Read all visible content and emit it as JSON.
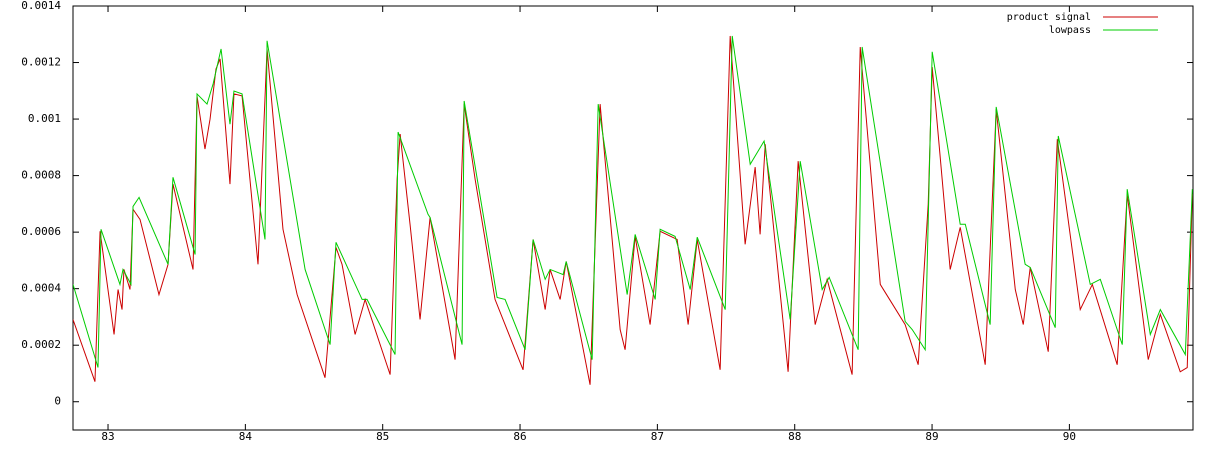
{
  "chart_data": {
    "type": "line",
    "xlim": [
      82.745,
      90.9
    ],
    "ylim": [
      -0.0001,
      0.0014
    ],
    "xticks": [
      83,
      84,
      85,
      86,
      87,
      88,
      89,
      90
    ],
    "yticks": [
      0,
      0.0002,
      0.0004,
      0.0006,
      0.0008,
      0.001,
      0.0012,
      0.0014
    ],
    "grid": false,
    "legend": "top-right",
    "series": [
      {
        "name": "product signal",
        "color": "#cc0000",
        "x": [
          82.745,
          82.905,
          82.942,
          83.044,
          83.073,
          83.102,
          83.116,
          83.16,
          83.182,
          83.233,
          83.371,
          83.437,
          83.473,
          83.619,
          83.648,
          83.706,
          83.743,
          83.786,
          83.816,
          83.888,
          83.917,
          83.976,
          84.092,
          84.158,
          84.274,
          84.377,
          84.58,
          84.66,
          84.704,
          84.799,
          84.872,
          85.054,
          85.105,
          85.127,
          85.199,
          85.272,
          85.345,
          85.527,
          85.593,
          85.673,
          85.818,
          86.022,
          86.095,
          86.183,
          86.219,
          86.292,
          86.336,
          86.51,
          86.583,
          86.729,
          86.765,
          86.838,
          86.947,
          87.02,
          87.144,
          87.224,
          87.29,
          87.457,
          87.53,
          87.639,
          87.712,
          87.748,
          87.785,
          87.952,
          88.025,
          88.149,
          88.236,
          88.418,
          88.477,
          88.623,
          88.804,
          88.899,
          88.972,
          89.001,
          89.132,
          89.205,
          89.387,
          89.467,
          89.606,
          89.664,
          89.715,
          89.846,
          89.912,
          90.079,
          90.167,
          90.348,
          90.421,
          90.574,
          90.662,
          90.807,
          90.858,
          90.895
        ],
        "values": [
          0.000291,
          7.1e-05,
          0.000603,
          0.000238,
          0.000397,
          0.000326,
          0.000468,
          0.000397,
          0.000681,
          0.000645,
          0.000379,
          0.000486,
          0.00077,
          0.000468,
          0.001082,
          0.000894,
          0.001,
          0.001177,
          0.001213,
          0.00077,
          0.001089,
          0.001082,
          0.000486,
          0.001248,
          0.00061,
          0.000379,
          8.5e-05,
          0.000546,
          0.000486,
          0.000238,
          0.000362,
          9.6e-05,
          0.000787,
          0.000947,
          0.000628,
          0.000291,
          0.000652,
          0.000149,
          0.001053,
          0.000787,
          0.000362,
          0.000113,
          0.000574,
          0.000326,
          0.000468,
          0.000362,
          0.000496,
          6e-05,
          0.001053,
          0.000255,
          0.000184,
          0.000585,
          0.000273,
          0.000603,
          0.000574,
          0.000273,
          0.000574,
          0.000113,
          0.001294,
          0.000557,
          0.00083,
          0.000592,
          0.000911,
          0.000106,
          0.000851,
          0.000273,
          0.000433,
          9.6e-05,
          0.001255,
          0.000415,
          0.000273,
          0.000131,
          0.000699,
          0.001184,
          0.000468,
          0.000617,
          0.000131,
          0.001035,
          0.000397,
          0.000273,
          0.000475,
          0.000177,
          0.000929,
          0.000326,
          0.000415,
          0.000131,
          0.000734,
          0.000149,
          0.000309,
          0.000106,
          0.000121,
          0.000734
        ]
      },
      {
        "name": "lowpass",
        "color": "#00cc00",
        "x": [
          82.745,
          82.927,
          82.949,
          83.087,
          83.109,
          83.167,
          83.182,
          83.226,
          83.437,
          83.473,
          83.634,
          83.648,
          83.721,
          83.765,
          83.823,
          83.888,
          83.917,
          83.976,
          84.143,
          84.158,
          84.435,
          84.617,
          84.66,
          84.85,
          84.886,
          85.09,
          85.112,
          85.33,
          85.345,
          85.578,
          85.593,
          85.833,
          85.891,
          86.037,
          86.095,
          86.183,
          86.219,
          86.314,
          86.336,
          86.525,
          86.569,
          86.78,
          86.838,
          86.984,
          87.02,
          87.129,
          87.239,
          87.29,
          87.494,
          87.545,
          87.676,
          87.777,
          87.967,
          88.04,
          88.2,
          88.251,
          88.462,
          88.491,
          88.804,
          88.856,
          88.95,
          89.001,
          89.205,
          89.242,
          89.423,
          89.467,
          89.678,
          89.715,
          89.897,
          89.919,
          90.152,
          90.225,
          90.385,
          90.421,
          90.589,
          90.662,
          90.844,
          90.895
        ],
        "values": [
          0.000415,
          0.000121,
          0.00061,
          0.000415,
          0.000468,
          0.000415,
          0.000691,
          0.000723,
          0.000486,
          0.000794,
          0.000521,
          0.001089,
          0.001053,
          0.001124,
          0.001248,
          0.000982,
          0.001099,
          0.001089,
          0.000574,
          0.001277,
          0.000468,
          0.000202,
          0.000564,
          0.000362,
          0.000362,
          0.000167,
          0.000954,
          0.000663,
          0.000652,
          0.000202,
          0.001064,
          0.000369,
          0.000362,
          0.000184,
          0.000574,
          0.000433,
          0.000468,
          0.00045,
          0.000496,
          0.000149,
          0.001053,
          0.000379,
          0.000592,
          0.000362,
          0.00061,
          0.000585,
          0.000397,
          0.000582,
          0.000326,
          0.001294,
          0.00084,
          0.000922,
          0.000291,
          0.000851,
          0.000397,
          0.00044,
          0.000184,
          0.001255,
          0.000284,
          0.000255,
          0.000184,
          0.001238,
          0.000628,
          0.000628,
          0.000273,
          0.001043,
          0.000486,
          0.000475,
          0.000262,
          0.00094,
          0.000415,
          0.000433,
          0.000202,
          0.000752,
          0.000238,
          0.000326,
          0.000167,
          0.000752
        ]
      }
    ]
  }
}
